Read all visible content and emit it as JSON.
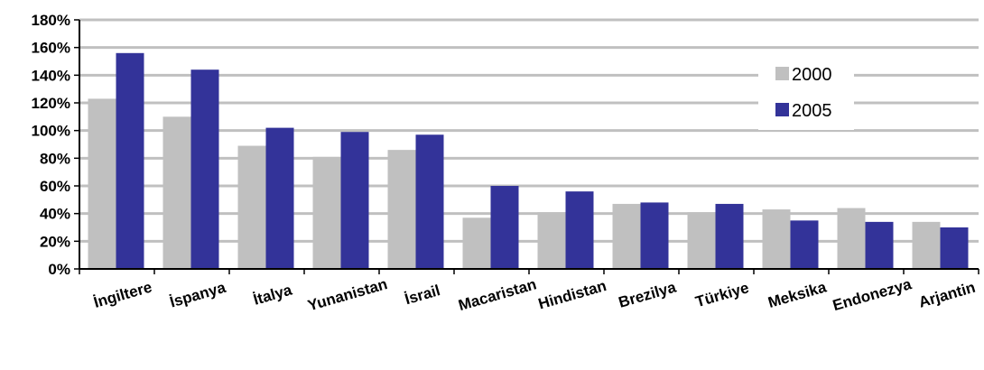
{
  "chart_data": {
    "type": "bar",
    "categories": [
      "İngiltere",
      "İspanya",
      "İtalya",
      "Yunanistan",
      "İsrail",
      "Macaristan",
      "Hindistan",
      "Brezilya",
      "Türkiye",
      "Meksika",
      "Endonezya",
      "Arjantin"
    ],
    "series": [
      {
        "name": "2000",
        "color": "#c0c0c0",
        "values": [
          123,
          110,
          89,
          81,
          86,
          37,
          41,
          47,
          41,
          43,
          44,
          34
        ]
      },
      {
        "name": "2005",
        "color": "#333399",
        "values": [
          156,
          144,
          102,
          99,
          97,
          60,
          56,
          48,
          47,
          35,
          34,
          30
        ]
      }
    ],
    "ylim": [
      0,
      180
    ],
    "yticks": [
      0,
      20,
      40,
      60,
      80,
      100,
      120,
      140,
      160,
      180
    ],
    "ytick_labels": [
      "0%",
      "20%",
      "40%",
      "60%",
      "80%",
      "100%",
      "120%",
      "140%",
      "160%",
      "180%"
    ],
    "grid": true,
    "legend_position": "top-right",
    "title": "",
    "xlabel": "",
    "ylabel": ""
  }
}
